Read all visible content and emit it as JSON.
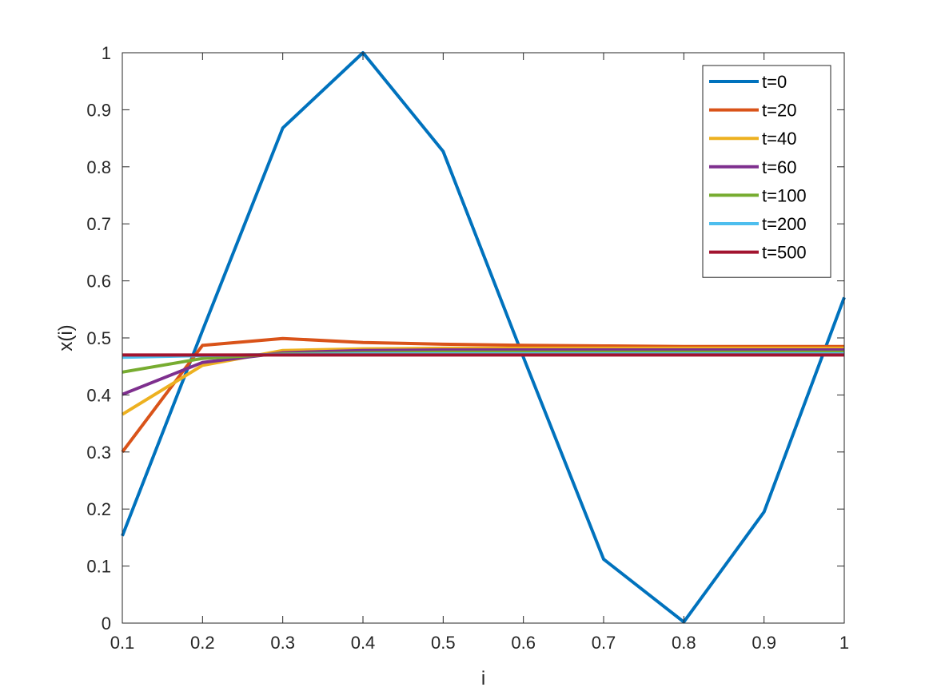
{
  "chart_data": {
    "type": "line",
    "title": "",
    "xlabel": "i",
    "ylabel": "x(i)",
    "xlim": [
      0.1,
      1
    ],
    "ylim": [
      0,
      1
    ],
    "x": [
      0.1,
      0.2,
      0.3,
      0.4,
      0.5,
      0.6,
      0.7,
      0.8,
      0.9,
      1.0
    ],
    "xticks": [
      "0.1",
      "0.2",
      "0.3",
      "0.4",
      "0.5",
      "0.6",
      "0.7",
      "0.8",
      "0.9",
      "1"
    ],
    "yticks": [
      "0",
      "0.1",
      "0.2",
      "0.3",
      "0.4",
      "0.5",
      "0.6",
      "0.7",
      "0.8",
      "0.9",
      "1"
    ],
    "grid": false,
    "legend_position": "top-right",
    "series": [
      {
        "name": "t=0",
        "color": "#0072BD",
        "values": [
          0.153,
          0.513,
          0.868,
          1.0,
          0.827,
          0.466,
          0.112,
          0.002,
          0.195,
          0.571
        ]
      },
      {
        "name": "t=20",
        "color": "#D95319",
        "values": [
          0.3,
          0.487,
          0.499,
          0.492,
          0.489,
          0.487,
          0.486,
          0.485,
          0.485,
          0.485
        ]
      },
      {
        "name": "t=40",
        "color": "#EDB120",
        "values": [
          0.366,
          0.452,
          0.478,
          0.481,
          0.482,
          0.482,
          0.482,
          0.482,
          0.482,
          0.482
        ]
      },
      {
        "name": "t=60",
        "color": "#7E2F8E",
        "values": [
          0.401,
          0.457,
          0.474,
          0.478,
          0.479,
          0.479,
          0.479,
          0.479,
          0.479,
          0.479
        ]
      },
      {
        "name": "t=100",
        "color": "#77AC30",
        "values": [
          0.44,
          0.464,
          0.472,
          0.474,
          0.475,
          0.475,
          0.475,
          0.475,
          0.475,
          0.475
        ]
      },
      {
        "name": "t=200",
        "color": "#4DBEEE",
        "values": [
          0.466,
          0.469,
          0.471,
          0.472,
          0.472,
          0.472,
          0.472,
          0.472,
          0.472,
          0.472
        ]
      },
      {
        "name": "t=500",
        "color": "#A2142F",
        "values": [
          0.47,
          0.47,
          0.47,
          0.47,
          0.47,
          0.47,
          0.47,
          0.47,
          0.47,
          0.47
        ]
      }
    ]
  }
}
